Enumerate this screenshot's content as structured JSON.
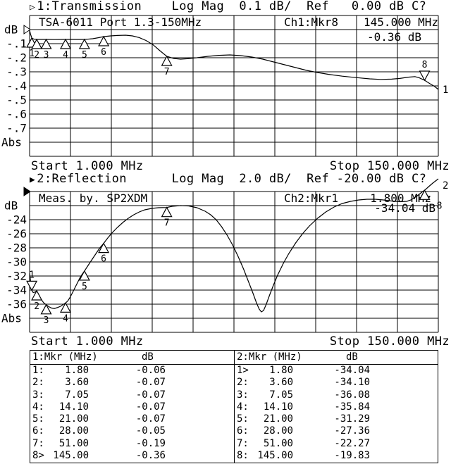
{
  "header1": {
    "arrow": "▷",
    "title": "1:Transmission    Log Mag  0.1 dB/  Ref   0.00 dB C?"
  },
  "header2": {
    "arrow": "▶",
    "title": "2:Reflection      Log Mag  2.0 dB/  Ref -20.00 dB C?"
  },
  "chart_data": [
    {
      "type": "line",
      "name": "Transmission",
      "annotation": "TSA-6011 Port 1.3-150MHz",
      "channel_marker": "Ch1:Mkr8",
      "marker_freq": "145.000 MHz",
      "marker_value": "-0.36 dB",
      "ylabel": "dB",
      "yticks": [
        "-.1",
        "-.2",
        "-.3",
        "-.4",
        "-.5",
        "-.6",
        "-.7"
      ],
      "abs_label": "Abs",
      "start_label": "Start 1.000 MHz",
      "stop_label": "Stop 150.000 MHz",
      "xlim_mhz": [
        1,
        150
      ],
      "ref_db": 0.0,
      "db_per_div": 0.1,
      "ref_style": "hollow",
      "trace_end_label": {
        "text": "1",
        "x": 628,
        "y": 132
      },
      "markers": [
        {
          "n": "1",
          "f": 1.8,
          "v": -0.06
        },
        {
          "n": "2",
          "f": 3.6,
          "v": -0.07
        },
        {
          "n": "3",
          "f": 7.05,
          "v": -0.07
        },
        {
          "n": "4",
          "f": 14.1,
          "v": -0.07
        },
        {
          "n": "5",
          "f": 21.0,
          "v": -0.07
        },
        {
          "n": "6",
          "f": 28.0,
          "v": -0.05
        },
        {
          "n": "7",
          "f": 51.0,
          "v": -0.19
        },
        {
          "n": "8",
          "f": 145.0,
          "v": -0.36,
          "active": true
        }
      ],
      "trace": [
        [
          1,
          -0.005
        ],
        [
          1.3,
          -0.03
        ],
        [
          1.8,
          -0.06
        ],
        [
          2.6,
          -0.068
        ],
        [
          3.6,
          -0.07
        ],
        [
          7.05,
          -0.07
        ],
        [
          10,
          -0.071
        ],
        [
          14.1,
          -0.07
        ],
        [
          18,
          -0.07
        ],
        [
          21,
          -0.07
        ],
        [
          24,
          -0.065
        ],
        [
          26,
          -0.058
        ],
        [
          28,
          -0.05
        ],
        [
          30.5,
          -0.045
        ],
        [
          33,
          -0.042
        ],
        [
          36,
          -0.04
        ],
        [
          38.5,
          -0.045
        ],
        [
          41,
          -0.057
        ],
        [
          43.5,
          -0.078
        ],
        [
          46,
          -0.108
        ],
        [
          48.5,
          -0.15
        ],
        [
          51,
          -0.19
        ],
        [
          53.5,
          -0.205
        ],
        [
          56,
          -0.21
        ],
        [
          58.5,
          -0.207
        ],
        [
          62,
          -0.2
        ],
        [
          66,
          -0.19
        ],
        [
          70,
          -0.183
        ],
        [
          74,
          -0.18
        ],
        [
          78,
          -0.185
        ],
        [
          82,
          -0.195
        ],
        [
          86,
          -0.21
        ],
        [
          90,
          -0.23
        ],
        [
          94,
          -0.25
        ],
        [
          98,
          -0.27
        ],
        [
          102,
          -0.29
        ],
        [
          106,
          -0.305
        ],
        [
          110,
          -0.318
        ],
        [
          115,
          -0.331
        ],
        [
          120,
          -0.341
        ],
        [
          125,
          -0.35
        ],
        [
          129,
          -0.354
        ],
        [
          133,
          -0.352
        ],
        [
          136,
          -0.347
        ],
        [
          139,
          -0.338
        ],
        [
          141.5,
          -0.334
        ],
        [
          143,
          -0.342
        ],
        [
          145,
          -0.36
        ],
        [
          147,
          -0.385
        ],
        [
          148.5,
          -0.402
        ],
        [
          150,
          -0.425
        ]
      ]
    },
    {
      "type": "line",
      "name": "Reflection",
      "annotation": "Meas. by. SP2XDM",
      "channel_marker": "Ch2:Mkr1",
      "marker_freq": "1.800 MHz",
      "marker_value": "-34.04 dB",
      "ylabel": "dB",
      "yticks": [
        "-24",
        "-26",
        "-28",
        "-30",
        "-32",
        "-34",
        "-36"
      ],
      "abs_label": "Abs",
      "start_label": "Start 1.000 MHz",
      "stop_label": "Stop 150.000 MHz",
      "xlim_mhz": [
        1,
        150
      ],
      "ref_db": -20.0,
      "db_per_div": 2.0,
      "ref_style": "filled",
      "trace_end_label": {
        "text": "2",
        "x": 628,
        "y": 268
      },
      "markers": [
        {
          "n": "1",
          "f": 1.8,
          "v": -34.04,
          "active": true
        },
        {
          "n": "2",
          "f": 3.6,
          "v": -34.1
        },
        {
          "n": "3",
          "f": 7.05,
          "v": -36.08
        },
        {
          "n": "4",
          "f": 14.1,
          "v": -35.84
        },
        {
          "n": "5",
          "f": 21.0,
          "v": -31.29
        },
        {
          "n": "6",
          "f": 28.0,
          "v": -27.36
        },
        {
          "n": "7",
          "f": 51.0,
          "v": -22.27
        },
        {
          "n": "8",
          "f": 145.0,
          "v": -19.83,
          "ldx": 21
        }
      ],
      "trace": [
        [
          1,
          -31.6
        ],
        [
          1.3,
          -32.6
        ],
        [
          1.8,
          -34.04
        ],
        [
          2.3,
          -34.35
        ],
        [
          2.9,
          -34.3
        ],
        [
          3.6,
          -34.1
        ],
        [
          4.3,
          -34.6
        ],
        [
          5.2,
          -35.3
        ],
        [
          6.1,
          -35.8
        ],
        [
          7.05,
          -36.08
        ],
        [
          8,
          -36.35
        ],
        [
          9,
          -36.55
        ],
        [
          10,
          -36.62
        ],
        [
          11,
          -36.5
        ],
        [
          12.3,
          -36.3
        ],
        [
          13.2,
          -36.05
        ],
        [
          14.1,
          -35.84
        ],
        [
          15,
          -35.5
        ],
        [
          15.8,
          -35.0
        ],
        [
          16.6,
          -34.4
        ],
        [
          17.5,
          -33.7
        ],
        [
          18.4,
          -33.0
        ],
        [
          19.3,
          -32.3
        ],
        [
          20.1,
          -31.8
        ],
        [
          21,
          -31.29
        ],
        [
          22,
          -30.7
        ],
        [
          23,
          -30.1
        ],
        [
          24.2,
          -29.4
        ],
        [
          25.4,
          -28.7
        ],
        [
          26.6,
          -28.0
        ],
        [
          28,
          -27.36
        ],
        [
          29.5,
          -26.6
        ],
        [
          31,
          -25.9
        ],
        [
          33,
          -25.1
        ],
        [
          35,
          -24.4
        ],
        [
          37,
          -23.8
        ],
        [
          39,
          -23.3
        ],
        [
          41,
          -22.9
        ],
        [
          43,
          -22.6
        ],
        [
          45.5,
          -22.4
        ],
        [
          48,
          -22.3
        ],
        [
          51,
          -22.27
        ],
        [
          53,
          -22.1
        ],
        [
          56,
          -22.0
        ],
        [
          59,
          -22.05
        ],
        [
          62,
          -22.3
        ],
        [
          65,
          -22.8
        ],
        [
          67,
          -23.3
        ],
        [
          69,
          -24.0
        ],
        [
          71,
          -25.0
        ],
        [
          73,
          -26.2
        ],
        [
          75,
          -27.6
        ],
        [
          77,
          -29.2
        ],
        [
          79,
          -31.0
        ],
        [
          81,
          -33.0
        ],
        [
          82.5,
          -34.5
        ],
        [
          83.7,
          -35.8
        ],
        [
          84.7,
          -36.7
        ],
        [
          85.5,
          -37.1
        ],
        [
          86.3,
          -36.9
        ],
        [
          87.3,
          -36.0
        ],
        [
          88.5,
          -34.7
        ],
        [
          90,
          -33.2
        ],
        [
          91.5,
          -31.8
        ],
        [
          93.5,
          -30.2
        ],
        [
          95.5,
          -28.8
        ],
        [
          98,
          -27.3
        ],
        [
          100.5,
          -26.0
        ],
        [
          103,
          -24.9
        ],
        [
          106,
          -23.8
        ],
        [
          109,
          -22.9
        ],
        [
          112,
          -22.2
        ],
        [
          115,
          -21.7
        ],
        [
          118,
          -21.4
        ],
        [
          121,
          -21.2
        ],
        [
          124,
          -21.1
        ],
        [
          127,
          -21.1
        ],
        [
          130,
          -21.2
        ],
        [
          133,
          -21.35
        ],
        [
          136,
          -21.45
        ],
        [
          138.5,
          -21.4
        ],
        [
          140,
          -21.2
        ],
        [
          142,
          -20.7
        ],
        [
          144,
          -20.1
        ],
        [
          145,
          -19.83
        ],
        [
          146.5,
          -19.3
        ],
        [
          148,
          -18.8
        ],
        [
          150,
          -18.2
        ]
      ]
    }
  ],
  "table": {
    "left": {
      "header": "1:Mkr (MHz)",
      "unit": "dB",
      "rows": [
        [
          "1:",
          "1.80",
          "-0.06"
        ],
        [
          "2:",
          "3.60",
          "-0.07"
        ],
        [
          "3:",
          "7.05",
          "-0.07"
        ],
        [
          "4:",
          "14.10",
          "-0.07"
        ],
        [
          "5:",
          "21.00",
          "-0.07"
        ],
        [
          "6:",
          "28.00",
          "-0.05"
        ],
        [
          "7:",
          "51.00",
          "-0.19"
        ],
        [
          "8>",
          "145.00",
          "-0.36"
        ]
      ]
    },
    "right": {
      "header": "2:Mkr (MHz)",
      "unit": "dB",
      "rows": [
        [
          "1>",
          "1.80",
          "-34.04"
        ],
        [
          "2:",
          "3.60",
          "-34.10"
        ],
        [
          "3:",
          "7.05",
          "-36.08"
        ],
        [
          "4:",
          "14.10",
          "-35.84"
        ],
        [
          "5:",
          "21.00",
          "-31.29"
        ],
        [
          "6:",
          "28.00",
          "-27.36"
        ],
        [
          "7:",
          "51.00",
          "-22.27"
        ],
        [
          "8:",
          "145.00",
          "-19.83"
        ]
      ]
    }
  }
}
